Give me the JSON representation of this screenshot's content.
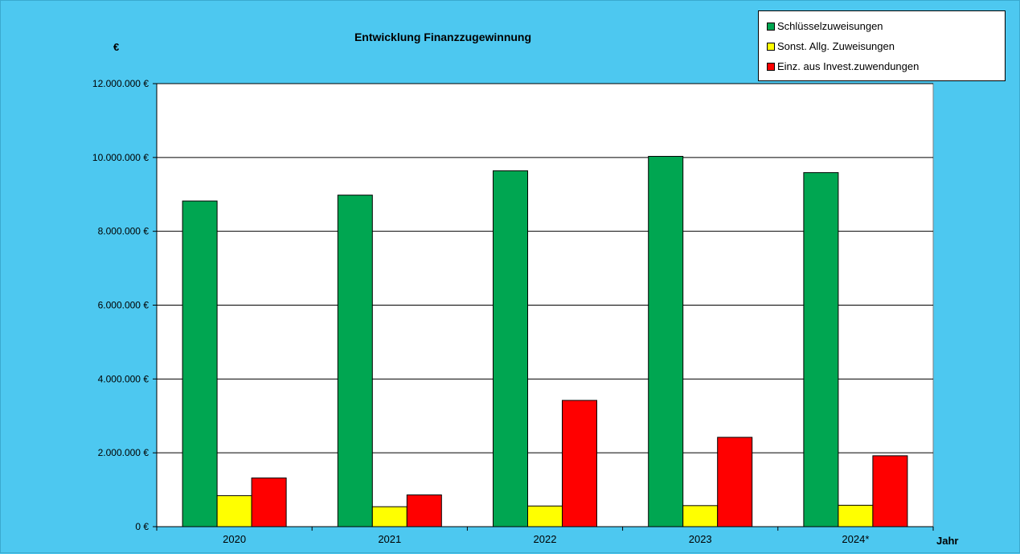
{
  "chart_data": {
    "type": "bar",
    "title": "Entwicklung Finanzzugewinnung",
    "ylabel": "€",
    "xlabel": "Jahr",
    "categories": [
      "2020",
      "2021",
      "2022",
      "2023",
      "2024*"
    ],
    "series": [
      {
        "name": "Schlüsselzuweisungen",
        "color": "#00A651",
        "values": [
          8820000,
          8980000,
          9640000,
          10030000,
          9590000
        ]
      },
      {
        "name": "Sonst. Allg. Zuweisungen",
        "color": "#FFFF00",
        "values": [
          840000,
          540000,
          560000,
          570000,
          580000
        ]
      },
      {
        "name": "Einz. aus Invest.zuwendungen",
        "color": "#FF0000",
        "values": [
          1320000,
          860000,
          3420000,
          2420000,
          1920000
        ]
      }
    ],
    "ylim": [
      0,
      12000000
    ],
    "yticks": [
      0,
      2000000,
      4000000,
      6000000,
      8000000,
      10000000,
      12000000
    ],
    "ytick_labels": [
      "0 €",
      "2.000.000 €",
      "4.000.000 €",
      "6.000.000 €",
      "8.000.000 €",
      "10.000.000 €",
      "12.000.000 €"
    ],
    "grid": true,
    "legend_position": "top-right",
    "plot_background": "#FFFFFF",
    "page_background": "#4DC8F0"
  }
}
